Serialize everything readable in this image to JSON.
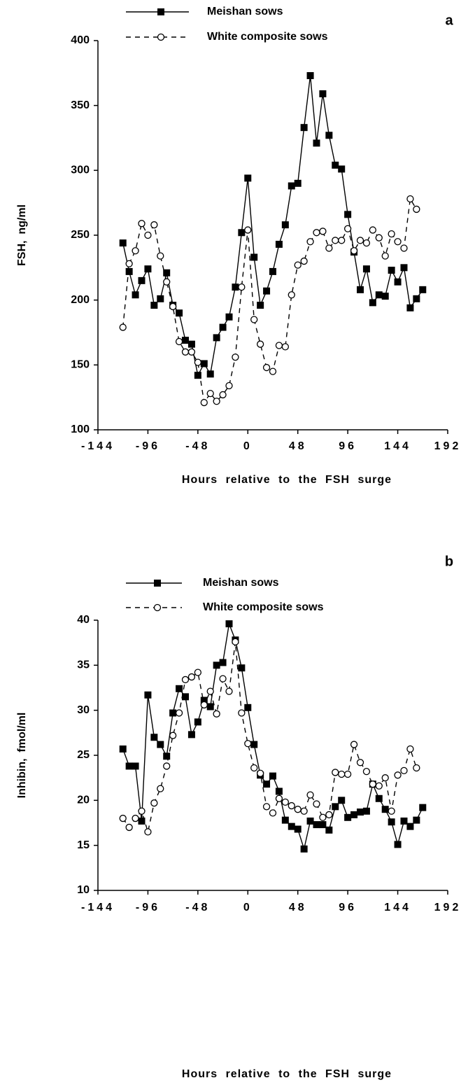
{
  "chart_data": [
    {
      "type": "line",
      "panel": "a",
      "xlabel": "Hours relative to the FSH surge",
      "ylabel": "FSH,  ng/ml",
      "xlim": [
        -144,
        192
      ],
      "xticks": [
        -144,
        -96,
        -48,
        0,
        48,
        96,
        144,
        192
      ],
      "ylim": [
        100,
        400
      ],
      "yticks": [
        100,
        150,
        200,
        250,
        300,
        350,
        400
      ],
      "series": [
        {
          "name": "Meishan sows",
          "color": "#000000",
          "style": "solid",
          "marker": "square",
          "x": [
            -120,
            -114,
            -108,
            -102,
            -96,
            -90,
            -84,
            -78,
            -72,
            -66,
            -60,
            -54,
            -48,
            -42,
            -36,
            -30,
            -24,
            -18,
            -12,
            -6,
            0,
            6,
            12,
            18,
            24,
            30,
            36,
            42,
            48,
            54,
            60,
            66,
            72,
            78,
            84,
            90,
            96,
            102,
            108,
            114,
            120,
            126,
            132,
            138,
            144,
            150,
            156,
            162,
            168
          ],
          "values": [
            244,
            222,
            204,
            215,
            224,
            196,
            201,
            221,
            196,
            190,
            169,
            166,
            142,
            151,
            143,
            171,
            179,
            187,
            210,
            252,
            294,
            233,
            196,
            207,
            222,
            243,
            258,
            288,
            290,
            333,
            373,
            321,
            359,
            327,
            304,
            301,
            266,
            237,
            208,
            224,
            198,
            204,
            203,
            223,
            214,
            225,
            194,
            201,
            208
          ]
        },
        {
          "name": "White composite sows",
          "color": "#000000",
          "style": "dashed",
          "marker": "circle",
          "x": [
            -120,
            -114,
            -108,
            -102,
            -96,
            -90,
            -84,
            -78,
            -72,
            -66,
            -60,
            -54,
            -48,
            -42,
            -36,
            -30,
            -24,
            -18,
            -12,
            -6,
            0,
            6,
            12,
            18,
            24,
            30,
            36,
            42,
            48,
            54,
            60,
            66,
            72,
            78,
            84,
            90,
            96,
            102,
            108,
            114,
            120,
            126,
            132,
            138,
            144,
            150,
            156,
            162
          ],
          "values": [
            179,
            228,
            238,
            259,
            250,
            258,
            234,
            214,
            195,
            168,
            160,
            160,
            152,
            121,
            128,
            122,
            127,
            134,
            156,
            210,
            254,
            185,
            166,
            148,
            145,
            165,
            164,
            204,
            227,
            230,
            245,
            252,
            253,
            240,
            246,
            246,
            255,
            238,
            246,
            244,
            254,
            248,
            234,
            251,
            245,
            240,
            278,
            270
          ]
        }
      ]
    },
    {
      "type": "line",
      "panel": "b",
      "xlabel": "Hours relative to the FSH surge",
      "ylabel": "Inhibin,  fmol/ml",
      "xlim": [
        -144,
        192
      ],
      "xticks": [
        -144,
        -96,
        -48,
        0,
        48,
        96,
        144,
        192
      ],
      "ylim": [
        10,
        40
      ],
      "yticks": [
        10,
        15,
        20,
        25,
        30,
        35,
        40
      ],
      "series": [
        {
          "name": "Meishan sows",
          "color": "#000000",
          "style": "solid",
          "marker": "square",
          "x": [
            -120,
            -114,
            -108,
            -102,
            -96,
            -90,
            -84,
            -78,
            -72,
            -66,
            -60,
            -54,
            -48,
            -42,
            -36,
            -30,
            -24,
            -18,
            -12,
            -6,
            0,
            6,
            12,
            18,
            24,
            30,
            36,
            42,
            48,
            54,
            60,
            66,
            72,
            78,
            84,
            90,
            96,
            102,
            108,
            114,
            120,
            126,
            132,
            138,
            144,
            150,
            156,
            162,
            168
          ],
          "values": [
            25.7,
            23.8,
            23.8,
            17.7,
            31.7,
            27.0,
            26.2,
            24.9,
            29.7,
            32.4,
            31.5,
            27.3,
            28.7,
            31.1,
            30.4,
            35.0,
            35.3,
            39.6,
            37.8,
            34.7,
            30.3,
            26.2,
            22.8,
            21.8,
            22.7,
            21.0,
            17.8,
            17.1,
            16.8,
            14.6,
            17.7,
            17.3,
            17.3,
            16.7,
            19.3,
            20.0,
            18.1,
            18.4,
            18.7,
            18.8,
            21.8,
            20.2,
            19.0,
            17.6,
            15.1,
            17.7,
            17.1,
            17.8,
            19.2
          ]
        },
        {
          "name": "White composite sows",
          "color": "#000000",
          "style": "dashed",
          "marker": "circle",
          "x": [
            -120,
            -114,
            -108,
            -102,
            -96,
            -90,
            -84,
            -78,
            -72,
            -66,
            -60,
            -54,
            -48,
            -42,
            -36,
            -30,
            -24,
            -18,
            -12,
            -6,
            0,
            6,
            12,
            18,
            24,
            30,
            36,
            42,
            48,
            54,
            60,
            66,
            72,
            78,
            84,
            90,
            96,
            102,
            108,
            114,
            120,
            126,
            132,
            138,
            144,
            150,
            156,
            162
          ],
          "values": [
            18.0,
            17.0,
            18.0,
            18.8,
            16.5,
            19.7,
            21.3,
            23.8,
            27.2,
            29.7,
            33.4,
            33.7,
            34.2,
            30.6,
            32.1,
            29.6,
            33.5,
            32.1,
            37.6,
            29.7,
            26.3,
            23.6,
            23.0,
            19.3,
            18.6,
            20.2,
            19.8,
            19.4,
            19.0,
            18.8,
            20.6,
            19.6,
            18.1,
            18.4,
            23.1,
            22.9,
            22.9,
            26.2,
            24.2,
            23.2,
            21.8,
            21.6,
            22.5,
            18.8,
            22.8,
            23.3,
            25.7,
            23.6
          ]
        }
      ]
    }
  ]
}
